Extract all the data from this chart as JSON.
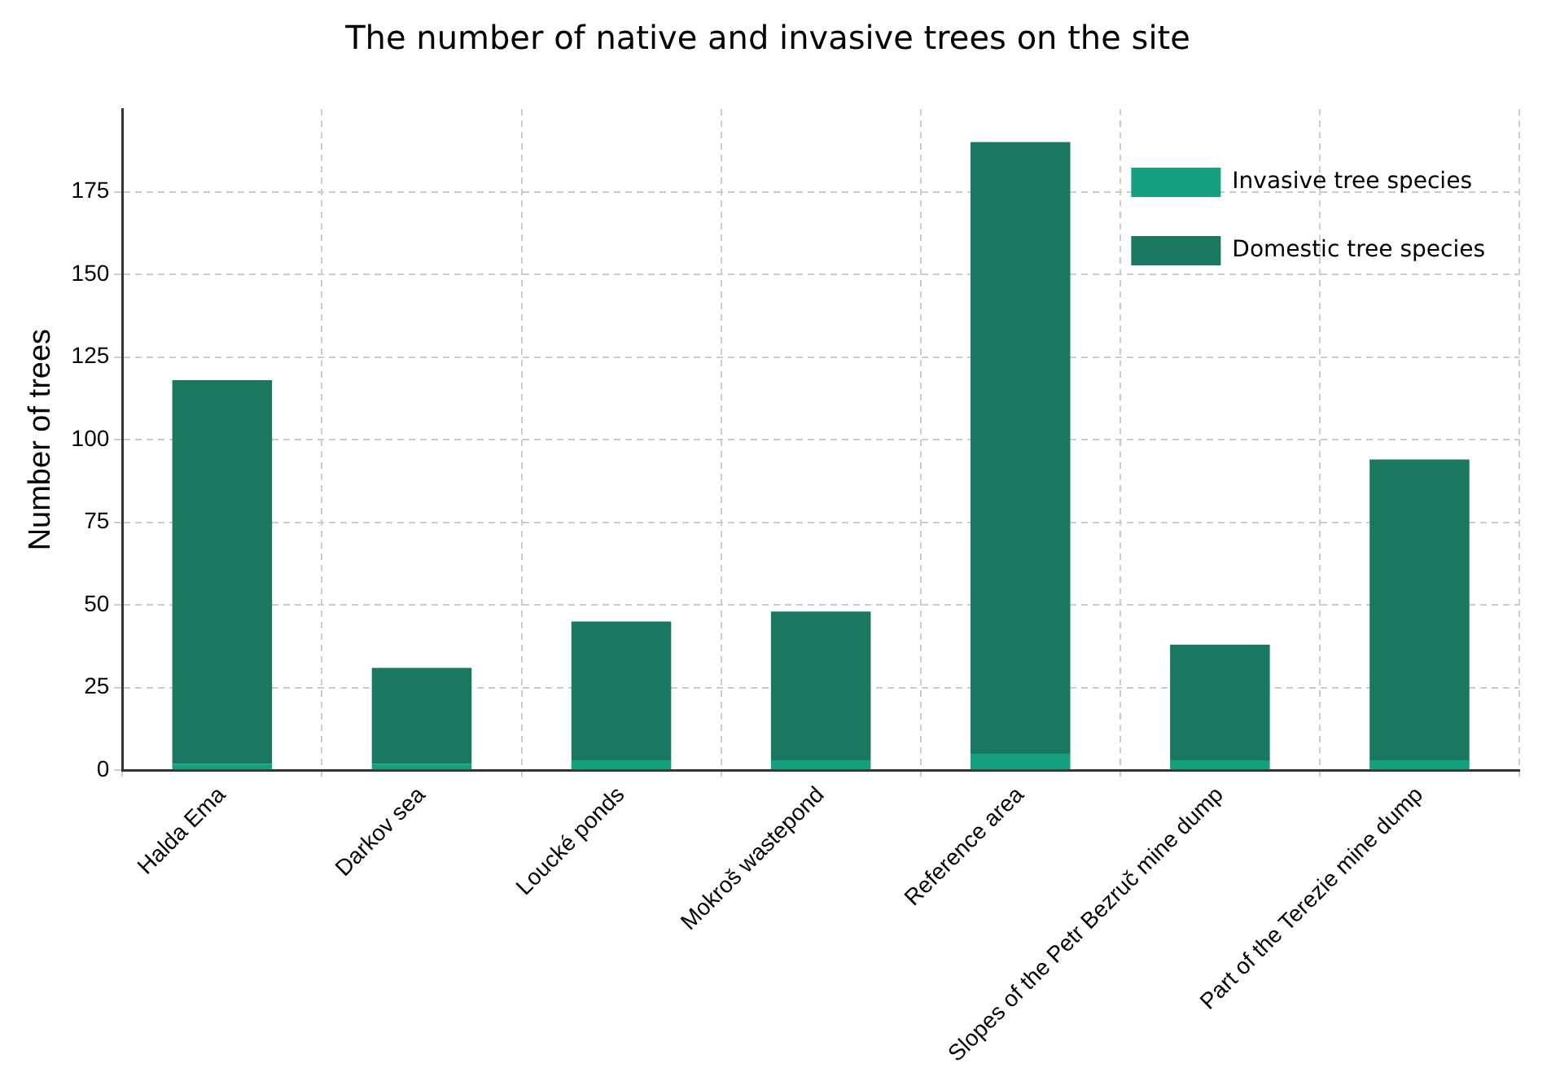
{
  "chart_data": {
    "type": "bar",
    "title": "The number of native and invasive trees on the site",
    "ylabel": "Number of trees",
    "categories": [
      "Halda Ema",
      "Darkov sea",
      "Loucké ponds",
      "Mokroš wastepond",
      "Reference area",
      "Slopes of the Petr Bezruč mine dump",
      "Part of the Terezie mine dump"
    ],
    "stacked": true,
    "series": [
      {
        "name": "Invasive tree species",
        "color": "#14a07e",
        "values": [
          2,
          2,
          3,
          3,
          5,
          3,
          3
        ]
      },
      {
        "name": "Domestic tree species",
        "color": "#1a7860",
        "values": [
          116,
          29,
          42,
          45,
          185,
          35,
          91
        ]
      }
    ],
    "ylim": [
      0,
      200
    ],
    "yticks": [
      0,
      25,
      50,
      75,
      100,
      125,
      150,
      175
    ],
    "grid": true,
    "legend": "top right"
  }
}
